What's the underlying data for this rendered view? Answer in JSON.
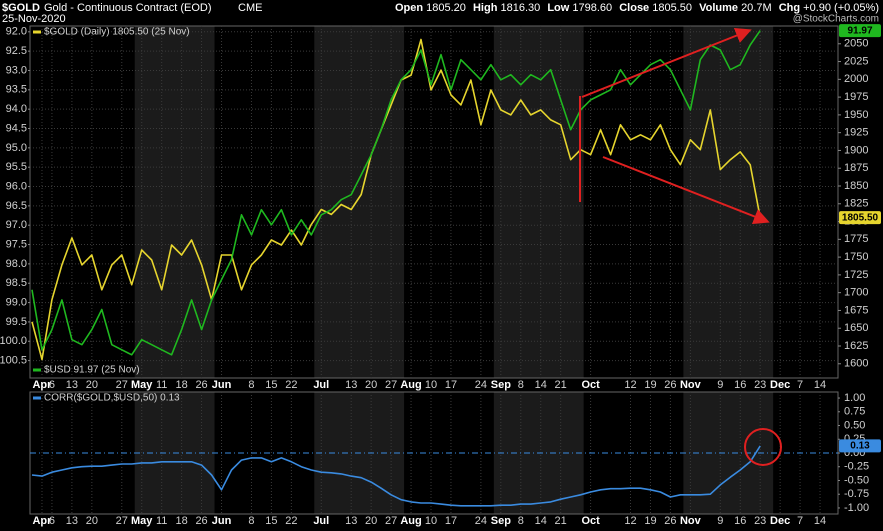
{
  "header": {
    "symbol": "$GOLD",
    "description": "Gold - Continuous Contract (EOD)",
    "exchange": "CME",
    "date": "25-Nov-2020",
    "stats": [
      {
        "label": "Open",
        "value": "1805.20"
      },
      {
        "label": "High",
        "value": "1816.30"
      },
      {
        "label": "Low",
        "value": "1798.60"
      },
      {
        "label": "Close",
        "value": "1805.50"
      },
      {
        "label": "Volume",
        "value": "20.7M"
      },
      {
        "label": "Chg",
        "value": "+0.90 (+0.05%)"
      }
    ],
    "watermark": "@StockCharts.com"
  },
  "chart_data": [
    {
      "type": "line",
      "categories": [
        null,
        "Apr",
        "6",
        null,
        "13",
        null,
        "20",
        null,
        null,
        "27",
        null,
        "May",
        null,
        "11",
        null,
        "18",
        null,
        "26",
        null,
        "Jun",
        null,
        null,
        "8",
        null,
        "15",
        null,
        "22",
        null,
        null,
        "Jul",
        null,
        null,
        "13",
        null,
        "20",
        null,
        "27",
        null,
        "Aug",
        null,
        "10",
        null,
        "17",
        null,
        null,
        "24",
        null,
        "Sep",
        null,
        "8",
        null,
        "14",
        null,
        "21",
        null,
        null,
        "Oct",
        null,
        null,
        null,
        "12",
        null,
        "19",
        null,
        "26",
        null,
        "Nov",
        null,
        null,
        "9",
        null,
        "16",
        null,
        "23",
        null,
        "Dec",
        null,
        "7",
        null,
        "14",
        null
      ],
      "series": [
        {
          "name": "$GOLD (Daily) 1805.50 (25 Nov)",
          "color": "#e6d52e",
          "axis": "y2",
          "legend": "top-left",
          "last_label": "1805.50",
          "values": [
            1659,
            1606,
            1690,
            1739,
            1777,
            1739,
            1753,
            1704,
            1739,
            1753,
            1711,
            1760,
            1746,
            1704,
            1767,
            1753,
            1774,
            1739,
            1690,
            1753,
            1753,
            1704,
            1739,
            1753,
            1774,
            1767,
            1788,
            1767,
            1796,
            1817,
            1810,
            1824,
            1817,
            1838,
            1894,
            1929,
            1964,
            1999,
            2006,
            2056,
            1985,
            2013,
            1978,
            1964,
            1999,
            1936,
            1985,
            1957,
            1950,
            1971,
            1950,
            1957,
            1943,
            1936,
            1887,
            1901,
            1894,
            1929,
            1894,
            1936,
            1915,
            1922,
            1915,
            1936,
            1901,
            1880,
            1915,
            1901,
            1957,
            1873,
            1887,
            1898,
            1880,
            1805.5,
            null,
            null,
            null,
            null,
            null,
            null,
            null
          ]
        },
        {
          "name": "$USD 91.97 (25 Nov)",
          "color": "#1fb81f",
          "axis": "y",
          "legend": "bottom-left",
          "values": [
            98.67,
            100.22,
            99.7,
            98.93,
            99.96,
            100.09,
            99.7,
            99.18,
            100.09,
            100.22,
            100.35,
            99.96,
            100.09,
            100.22,
            100.35,
            99.7,
            98.93,
            99.7,
            98.93,
            98.41,
            97.89,
            96.73,
            97.25,
            96.6,
            96.99,
            96.6,
            97.25,
            96.86,
            97.25,
            96.73,
            96.6,
            96.34,
            96.21,
            95.7,
            95.18,
            94.53,
            93.76,
            93.24,
            92.98,
            92.47,
            93.37,
            92.59,
            93.5,
            92.72,
            92.98,
            93.24,
            92.85,
            93.24,
            93.11,
            93.37,
            93.11,
            93.24,
            92.98,
            93.76,
            94.53,
            94.02,
            93.76,
            93.63,
            93.5,
            92.98,
            93.37,
            93.11,
            92.85,
            92.72,
            92.98,
            93.5,
            94.02,
            92.72,
            92.34,
            92.47,
            92.98,
            92.85,
            92.34,
            91.97,
            null,
            null,
            null,
            null,
            null,
            null,
            null
          ]
        }
      ],
      "ylim": [
        100.95,
        91.85
      ],
      "yticks": [
        {
          "value": 92,
          "label": "92.0"
        },
        92.5,
        {
          "value": 93,
          "label": "93.0"
        },
        93.5,
        {
          "value": 94,
          "label": "94.0"
        },
        94.5,
        {
          "value": 95,
          "label": "95.0"
        },
        95.5,
        {
          "value": 96,
          "label": "96.0"
        },
        96.5,
        {
          "value": 97,
          "label": "97.0"
        },
        97.5,
        {
          "value": 98,
          "label": "98.0"
        },
        98.5,
        {
          "value": 99,
          "label": "99.0"
        },
        99.5,
        {
          "value": 100,
          "label": "100.0"
        },
        100.5
      ],
      "y2lim": [
        1580,
        2075
      ],
      "y2ticks": [
        1600,
        1625,
        1650,
        1675,
        1700,
        1725,
        1750,
        1775,
        1800,
        1825,
        1850,
        1875,
        1900,
        1925,
        1950,
        1975,
        2000,
        2025,
        2050
      ],
      "grid": true
    },
    {
      "type": "line",
      "categories": [
        null,
        "Apr",
        "6",
        null,
        "13",
        null,
        "20",
        null,
        null,
        "27",
        null,
        "May",
        null,
        "11",
        null,
        "18",
        null,
        "26",
        null,
        "Jun",
        null,
        null,
        "8",
        null,
        "15",
        null,
        "22",
        null,
        null,
        "Jul",
        null,
        null,
        "13",
        null,
        "20",
        null,
        "27",
        null,
        "Aug",
        null,
        "10",
        null,
        "17",
        null,
        null,
        "24",
        null,
        "Sep",
        null,
        "8",
        null,
        "14",
        null,
        "21",
        null,
        null,
        "Oct",
        null,
        null,
        null,
        "12",
        null,
        "19",
        null,
        "26",
        null,
        "Nov",
        null,
        null,
        "9",
        null,
        "16",
        null,
        "23",
        null,
        "Dec",
        null,
        "7",
        null,
        "14",
        null
      ],
      "series": [
        {
          "name": "CORR($GOLD,$USD,50) 0.13",
          "color": "#3a8be0",
          "axis": "y",
          "legend": "top-left",
          "values": [
            -0.4,
            -0.42,
            -0.35,
            -0.31,
            -0.27,
            -0.25,
            -0.24,
            -0.24,
            -0.22,
            -0.2,
            -0.2,
            -0.18,
            -0.18,
            -0.16,
            -0.16,
            -0.16,
            -0.16,
            -0.22,
            -0.4,
            -0.67,
            -0.31,
            -0.13,
            -0.09,
            -0.09,
            -0.16,
            -0.09,
            -0.16,
            -0.25,
            -0.31,
            -0.35,
            -0.36,
            -0.38,
            -0.42,
            -0.45,
            -0.53,
            -0.64,
            -0.76,
            -0.85,
            -0.89,
            -0.91,
            -0.91,
            -0.93,
            -0.95,
            -0.96,
            -0.96,
            -0.96,
            -0.96,
            -0.95,
            -0.95,
            -0.93,
            -0.93,
            -0.91,
            -0.89,
            -0.84,
            -0.8,
            -0.76,
            -0.71,
            -0.67,
            -0.65,
            -0.65,
            -0.64,
            -0.64,
            -0.67,
            -0.71,
            -0.8,
            -0.76,
            -0.76,
            -0.76,
            -0.75,
            -0.58,
            -0.44,
            -0.31,
            -0.16,
            0.13,
            null,
            null,
            null,
            null,
            null,
            null,
            null
          ]
        }
      ],
      "ylim": [
        -1.11,
        1.11
      ],
      "yticks": [
        {
          "value": 1,
          "label": "1.00"
        },
        {
          "value": 0.75,
          "label": "0.75"
        },
        {
          "value": 0.5,
          "label": "0.50"
        },
        {
          "value": 0.25,
          "label": "0.25"
        },
        {
          "value": 0,
          "label": "0.00"
        },
        {
          "value": -0.25,
          "label": "-0.25"
        },
        {
          "value": -0.5,
          "label": "-0.50"
        },
        {
          "value": -0.75,
          "label": "-0.75"
        },
        {
          "value": -1,
          "label": "-1.00"
        }
      ],
      "y_axis_side": "right",
      "reference_line": 0,
      "grid": false
    }
  ]
}
